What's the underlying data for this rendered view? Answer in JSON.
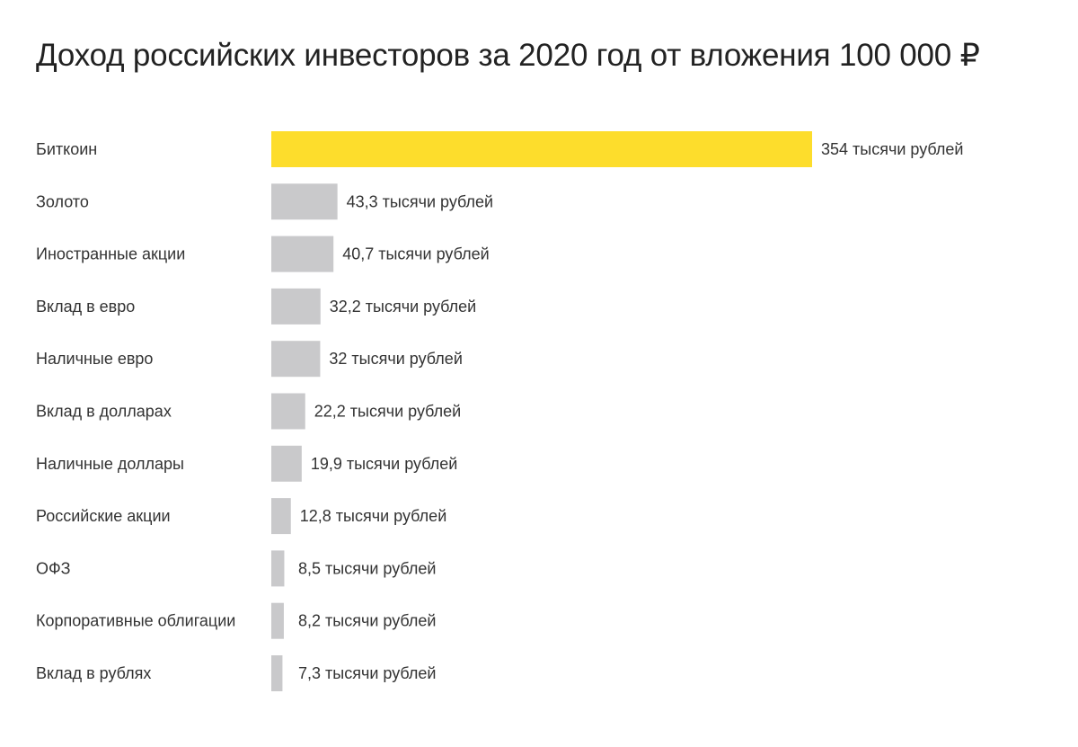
{
  "title": "Доход российских инвесторов за 2020 год от вложения 100 000 ₽",
  "colors": {
    "highlight": "#FDDD2C",
    "bar": "#C9C9CB",
    "text": "#333333"
  },
  "chart_data": {
    "type": "bar",
    "orientation": "horizontal",
    "title": "Доход российских инвесторов за 2020 год от вложения 100 000 ₽",
    "xlabel": "",
    "ylabel": "",
    "unit": "тысячи рублей",
    "grid": false,
    "legend": "none",
    "xlim": [
      0,
      354
    ],
    "categories": [
      "Биткоин",
      "Золото",
      "Иностранные акции",
      "Вклад в евро",
      "Наличные евро",
      "Вклад в долларах",
      "Наличные доллары",
      "Российские акции",
      "ОФЗ",
      "Корпоративные облигации",
      "Вклад в рублях"
    ],
    "values": [
      354,
      43.3,
      40.7,
      32.2,
      32,
      22.2,
      19.9,
      12.8,
      8.5,
      8.2,
      7.3
    ],
    "data_labels": [
      "354 тысячи рублей",
      "43,3 тысячи рублей",
      "40,7 тысячи рублей",
      "32,2 тысячи рублей",
      "32 тысячи рублей",
      "22,2 тысячи рублей",
      "19,9 тысячи рублей",
      "12,8 тысячи рублей",
      "8,5 тысячи рублей",
      "8,2 тысячи рублей",
      "7,3 тысячи рублей"
    ],
    "highlighted": [
      "Биткоин"
    ]
  }
}
